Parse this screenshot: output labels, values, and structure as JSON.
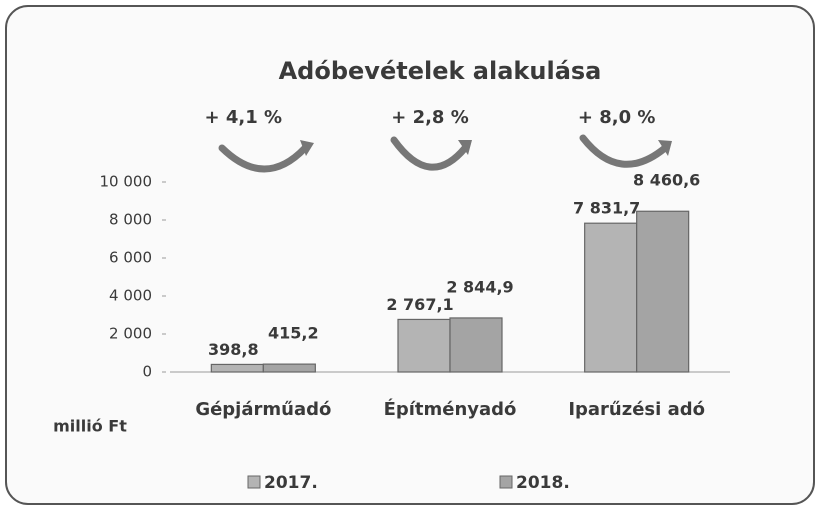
{
  "chart_data": {
    "type": "bar",
    "title": "Adóbevételek alakulása",
    "categories": [
      "Gépjárműadó",
      "Építményadó",
      "Iparűzési adó"
    ],
    "series": [
      {
        "name": "2017.",
        "color": "#b4b4b4",
        "values": [
          398.8,
          2767.1,
          7831.7
        ],
        "value_labels": [
          "398,8",
          "2 767,1",
          "7 831,7"
        ]
      },
      {
        "name": "2018.",
        "color": "#a4a4a4",
        "values": [
          415.2,
          2844.9,
          8460.6
        ],
        "value_labels": [
          "415,2",
          "2 844,9",
          "8 460,6"
        ]
      }
    ],
    "annotations": [
      "+ 4,1 %",
      "+ 2,8 %",
      "+ 8,0 %"
    ],
    "y_axis_label": "millió Ft",
    "ylim": [
      0,
      10000
    ],
    "yticks": [
      0,
      {
        "value": 2000,
        "label": "2 000"
      },
      {
        "value": 4000,
        "label": "4 000"
      },
      {
        "value": 6000,
        "label": "6 000"
      },
      {
        "value": 8000,
        "label": "8 000"
      },
      {
        "value": 10000,
        "label": "10 000"
      }
    ]
  }
}
